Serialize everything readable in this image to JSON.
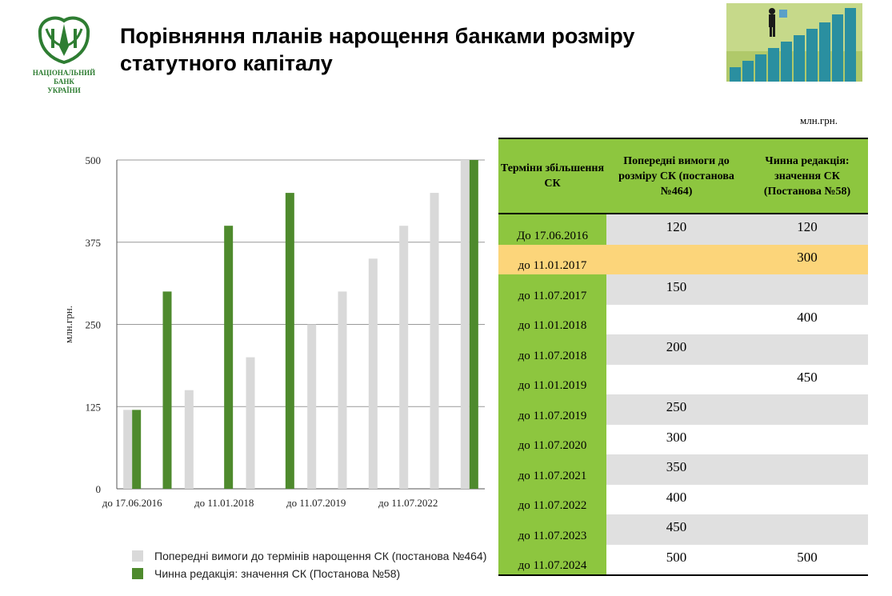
{
  "logo": {
    "line1": "НАЦІОНАЛЬНИЙ",
    "line2": "БАНК",
    "line3": "УКРАЇНИ"
  },
  "title": {
    "line1": "Порівняння планів нарощення банками розміру",
    "line2": "статутного капіталу"
  },
  "unit_label": "млн.грн.",
  "colors": {
    "green": "#4e8a2d",
    "grey": "#d9d9d9",
    "table_green": "#8dc63f",
    "highlight": "#fcd57a"
  },
  "chart_data": {
    "type": "bar",
    "ylabel": "млн.грн.",
    "ylim": [
      0,
      500
    ],
    "yticks": [
      "0",
      "125",
      "250",
      "375",
      "500"
    ],
    "xtick_labels": [
      "до 17.06.2016",
      "до 11.01.2018",
      "до 11.07.2019",
      "до 11.07.2022"
    ],
    "categories": [
      "до 17.06.2016",
      "до 11.01.2017",
      "до 11.07.2017",
      "до 11.01.2018",
      "до 11.07.2018",
      "до 11.01.2019",
      "до 11.07.2019",
      "до 11.07.2020",
      "до 11.07.2021",
      "до 11.07.2022",
      "до 11.07.2023",
      "до 11.07.2024"
    ],
    "series": [
      {
        "name": "Попередні  вимоги до термінів нарощення СК (постанова №464)",
        "values": [
          120,
          null,
          150,
          null,
          200,
          null,
          250,
          300,
          350,
          400,
          450,
          500
        ]
      },
      {
        "name": "Чинна редакція: значення СК (Постанова №58)",
        "values": [
          120,
          300,
          null,
          400,
          null,
          450,
          null,
          null,
          null,
          null,
          null,
          500
        ]
      }
    ],
    "grid": true,
    "legend_position": "bottom"
  },
  "table": {
    "headers": [
      "Терміни збільшення СК",
      "Попередні вимоги до розміру СК (постанова №464)",
      "Чинна редакція: значення СК (Постанова №58)"
    ],
    "rows": [
      {
        "term": "До 17.06.2016",
        "prev": "120",
        "cur": "120"
      },
      {
        "term": "до 11.01.2017",
        "prev": "",
        "cur": "300"
      },
      {
        "term": "до 11.07.2017",
        "prev": "150",
        "cur": ""
      },
      {
        "term": "до 11.01.2018",
        "prev": "",
        "cur": "400"
      },
      {
        "term": "до 11.07.2018",
        "prev": "200",
        "cur": ""
      },
      {
        "term": "до 11.01.2019",
        "prev": "",
        "cur": "450"
      },
      {
        "term": "до 11.07.2019",
        "prev": "250",
        "cur": ""
      },
      {
        "term": "до 11.07.2020",
        "prev": "300",
        "cur": ""
      },
      {
        "term": "до 11.07.2021",
        "prev": "350",
        "cur": ""
      },
      {
        "term": "до 11.07.2022",
        "prev": "400",
        "cur": ""
      },
      {
        "term": "до 11.07.2023",
        "prev": "450",
        "cur": ""
      },
      {
        "term": "до 11.07.2024",
        "prev": "500",
        "cur": "500"
      }
    ]
  }
}
